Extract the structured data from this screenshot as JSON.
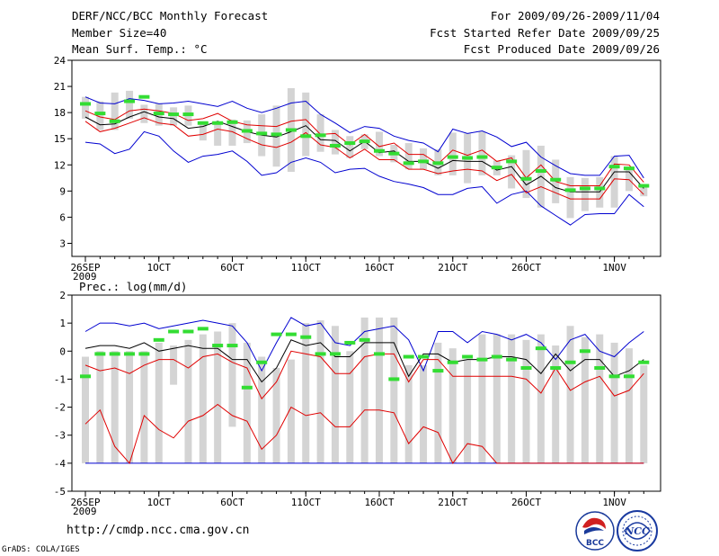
{
  "header": {
    "title": "DERF/NCC/BCC Monthly Forecast",
    "member_size": "Member Size=40",
    "variable1": "Mean Surf. Temp.: °C",
    "period": "For 2009/09/26-2009/11/04",
    "start_date": "Fcst Started Refer Date 2009/09/25",
    "produced_date": "Fcst Produced Date 2009/09/26"
  },
  "panel2_label": "Prec.: log(mm/d)",
  "footer": {
    "url": "http://cmdp.ncc.cma.gov.cn",
    "grads": "GrADS: COLA/IGES",
    "logo1_text": "BCC",
    "logo2_text": "NCC"
  },
  "colors": {
    "ensemble_mean": "#000000",
    "spread": "#e00000",
    "extremes": "#0000d0",
    "box": "#d4d4d4",
    "observed_mark": "#33dd33"
  },
  "chart_data": [
    {
      "type": "line",
      "title": "Mean Surf. Temp.: °C",
      "x_tick_labels": [
        "26SEP\n2009",
        "1OCT",
        "6OCT",
        "11OCT",
        "16OCT",
        "21OCT",
        "26OCT",
        "1NOV"
      ],
      "x_tick_index": [
        0,
        5,
        10,
        15,
        20,
        25,
        30,
        36
      ],
      "y_ticks": [
        3,
        6,
        9,
        12,
        15,
        18,
        21,
        24
      ],
      "ylim": [
        1.5,
        24
      ],
      "box_low": [
        17.3,
        16,
        16,
        17.3,
        16.8,
        16.5,
        16.5,
        16.5,
        14.8,
        14.2,
        14.2,
        14.5,
        13,
        11.8,
        11.2,
        13,
        13.5,
        13.2,
        12.8,
        13.8,
        13,
        12.3,
        11.5,
        11.5,
        10.8,
        10.8,
        9.9,
        10.8,
        10.8,
        9.3,
        8.2,
        7.1,
        7.6,
        5.9,
        6.7,
        7.1,
        7.1,
        9,
        8.4
      ],
      "box_high": [
        19.8,
        19.3,
        20.3,
        20.5,
        18.9,
        19,
        18.6,
        18.8,
        17,
        16.7,
        17.2,
        17.1,
        17.8,
        18.8,
        20.8,
        20.3,
        17.8,
        16,
        15.3,
        15.5,
        15.8,
        14.3,
        14.5,
        13.9,
        13.8,
        15.7,
        15.6,
        15.8,
        12.5,
        13.1,
        13.7,
        14.2,
        12.6,
        10.6,
        10.5,
        10.6,
        13,
        11.6,
        9.6
      ],
      "blue_low": [
        14.6,
        14.4,
        13.3,
        13.8,
        15.8,
        15.3,
        13.6,
        12.3,
        13,
        13.2,
        13.6,
        12.4,
        10.8,
        11.1,
        12.3,
        12.8,
        12.3,
        11.1,
        11.5,
        11.6,
        10.7,
        10.1,
        9.8,
        9.4,
        8.6,
        8.6,
        9.3,
        9.5,
        7.6,
        8.6,
        9,
        7.3,
        6.2,
        5.1,
        6.3,
        6.4,
        6.4,
        8.6,
        7.2
      ],
      "blue_high": [
        19.8,
        19.1,
        19,
        19.6,
        19.4,
        19,
        19.1,
        19.3,
        19,
        18.7,
        19.3,
        18.5,
        18,
        18.5,
        19.1,
        19.3,
        17.8,
        16.8,
        15.7,
        16.4,
        16.2,
        15.3,
        14.8,
        14.5,
        13.5,
        16.1,
        15.6,
        15.9,
        15.2,
        14.1,
        14.6,
        12.9,
        11.9,
        11,
        10.8,
        10.8,
        13,
        13.1,
        10.5
      ],
      "red_low": [
        17,
        15.8,
        16.2,
        16.8,
        17.4,
        16.8,
        16.6,
        15.3,
        15.5,
        16.1,
        15.8,
        15,
        14.3,
        14,
        14.6,
        15.7,
        14.3,
        14,
        12.8,
        13.8,
        12.6,
        12.6,
        11.5,
        11.5,
        11,
        11.3,
        11.5,
        11.3,
        10.2,
        10.9,
        8.8,
        9.5,
        8.8,
        8.1,
        8.1,
        8.1,
        10.4,
        10.3,
        8.6
      ],
      "red_high": [
        18.2,
        17.5,
        17.2,
        18.2,
        18.4,
        18.2,
        17.9,
        17.1,
        17.3,
        17.9,
        17,
        16.6,
        16.5,
        16.4,
        17,
        17.2,
        15.5,
        15.6,
        14.3,
        15.5,
        14.1,
        14.5,
        13.2,
        13.2,
        12.1,
        13.7,
        13.1,
        13.7,
        12.4,
        12.8,
        10.5,
        12,
        10.1,
        9.6,
        9.6,
        9.6,
        12.1,
        12,
        10
      ],
      "black_mean": [
        17.5,
        16.6,
        16.7,
        17.5,
        18.1,
        17.5,
        17.3,
        16.2,
        16.4,
        17,
        16.4,
        15.8,
        15.4,
        15.2,
        15.8,
        16.5,
        14.9,
        14.8,
        13.6,
        14.7,
        13.4,
        13.6,
        12.4,
        12.4,
        11.6,
        12.5,
        12.4,
        12.4,
        11.4,
        11.8,
        9.7,
        10.7,
        9.4,
        8.9,
        8.9,
        8.9,
        11.2,
        11.2,
        9.3
      ],
      "green_marks": [
        19,
        17.9,
        17,
        19.3,
        19.8,
        17.9,
        17.8,
        17.8,
        16.8,
        16.8,
        16.9,
        15.9,
        15.6,
        15.5,
        16,
        15.3,
        15.4,
        14.2,
        14.5,
        14.7,
        13.6,
        13.3,
        12.2,
        12.4,
        12.2,
        12.9,
        12.8,
        12.9,
        11.7,
        12.4,
        10.4,
        11.3,
        10.3,
        9.1,
        9.3,
        9.3,
        11.8,
        11.6,
        9.6
      ]
    },
    {
      "type": "line",
      "title": "Prec.: log(mm/d)",
      "x_tick_labels": [
        "26SEP\n2009",
        "1OCT",
        "6OCT",
        "11OCT",
        "16OCT",
        "21OCT",
        "26OCT",
        "1NOV"
      ],
      "x_tick_index": [
        0,
        5,
        10,
        15,
        20,
        25,
        30,
        36
      ],
      "y_ticks": [
        -5,
        -4,
        -3,
        -2,
        -1,
        0,
        1,
        2
      ],
      "ylim": [
        -5,
        2
      ],
      "box_low": [
        -4,
        -4,
        -4,
        -4,
        -4,
        -4,
        -1.2,
        -4,
        -4,
        -4,
        -2.7,
        -4,
        -4,
        -4,
        -4,
        -4,
        -4,
        -4,
        -4,
        -4,
        -4,
        -4,
        -4,
        -4,
        -4,
        -4,
        -4,
        -4,
        -4,
        -4,
        -4,
        -4,
        -4,
        -4,
        -4,
        -4,
        -4,
        -4,
        -4
      ],
      "box_high": [
        -0.2,
        0,
        0,
        0,
        0,
        0.3,
        0.2,
        0.4,
        0.6,
        0.7,
        1,
        0.3,
        -0.2,
        -0.6,
        -0.3,
        1,
        1.1,
        0.9,
        0,
        1.2,
        1.2,
        1.2,
        -0.5,
        -0.5,
        0.3,
        0.1,
        -0.3,
        0.6,
        0.6,
        0.6,
        0.4,
        0.6,
        0.2,
        0.9,
        0.5,
        0.6,
        0.3,
        0.1,
        -0.5
      ],
      "blue_low": [
        -4,
        -4,
        -4,
        -4,
        -4,
        -4,
        -4,
        -4,
        -4,
        -4,
        -4,
        -4,
        -4,
        -4,
        -4,
        -4,
        -4,
        -4,
        -4,
        -4,
        -4,
        -4,
        -4,
        -4,
        -4,
        -4,
        -4,
        -4,
        -4,
        -4,
        -4,
        -4,
        -4,
        -4,
        -4,
        -4,
        -4,
        -4,
        -4
      ],
      "blue_high": [
        0.7,
        1,
        1,
        0.9,
        1,
        0.8,
        0.9,
        1,
        1.1,
        1,
        0.9,
        0.3,
        -0.7,
        0.3,
        1.2,
        0.9,
        1,
        0.3,
        0.2,
        0.7,
        0.8,
        0.9,
        0.4,
        -0.7,
        0.7,
        0.7,
        0.3,
        0.7,
        0.6,
        0.4,
        0.6,
        0.3,
        -0.3,
        0.4,
        0.6,
        0,
        -0.2,
        0.3,
        0.7
      ],
      "red_low": [
        -2.6,
        -2.1,
        -3.4,
        -4,
        -2.3,
        -2.8,
        -3.1,
        -2.5,
        -2.3,
        -1.9,
        -2.3,
        -2.5,
        -3.5,
        -3,
        -2,
        -2.3,
        -2.2,
        -2.7,
        -2.7,
        -2.1,
        -2.1,
        -2.2,
        -3.3,
        -2.7,
        -2.9,
        -4,
        -3.3,
        -3.4,
        -4,
        -4,
        -4,
        -4,
        -4,
        -4,
        -4,
        -4,
        -4,
        -4,
        -4
      ],
      "red_high": [
        -0.5,
        -0.7,
        -0.6,
        -0.8,
        -0.5,
        -0.3,
        -0.3,
        -0.6,
        -0.2,
        -0.1,
        -0.4,
        -0.6,
        -1.7,
        -1.1,
        0,
        -0.1,
        -0.2,
        -0.8,
        -0.8,
        -0.2,
        -0.1,
        -0.1,
        -1.1,
        -0.3,
        -0.3,
        -0.9,
        -0.9,
        -0.9,
        -0.9,
        -0.9,
        -1,
        -1.5,
        -0.6,
        -1.4,
        -1.1,
        -0.9,
        -1.6,
        -1.4,
        -0.8
      ],
      "black_mean": [
        0.1,
        0.2,
        0.2,
        0.1,
        0.3,
        0,
        0.1,
        0.2,
        0.1,
        0.1,
        -0.3,
        -0.3,
        -1.1,
        -0.6,
        0.4,
        0.2,
        0.3,
        -0.2,
        -0.2,
        0.3,
        0.3,
        0.3,
        -0.9,
        -0.1,
        -0.1,
        -0.4,
        -0.3,
        -0.3,
        -0.2,
        -0.2,
        -0.3,
        -0.8,
        -0.1,
        -0.7,
        -0.3,
        -0.3,
        -0.9,
        -0.7,
        -0.3
      ],
      "green_marks": [
        -0.9,
        -0.1,
        -0.1,
        -0.1,
        -0.1,
        0.4,
        0.7,
        0.7,
        0.8,
        0.2,
        0.2,
        -1.3,
        -0.4,
        0.6,
        0.6,
        0.5,
        -0.1,
        -0.1,
        0.3,
        0.4,
        -0.1,
        -1,
        -0.2,
        -0.2,
        -0.7,
        -0.4,
        -0.2,
        -0.3,
        -0.2,
        -0.3,
        -0.6,
        0.1,
        -0.6,
        -0.4,
        0,
        -0.6,
        -0.9,
        -0.9,
        -0.4
      ]
    }
  ]
}
